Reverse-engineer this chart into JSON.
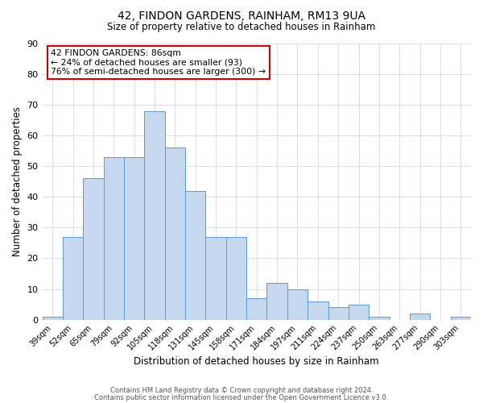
{
  "title": "42, FINDON GARDENS, RAINHAM, RM13 9UA",
  "subtitle": "Size of property relative to detached houses in Rainham",
  "xlabel": "Distribution of detached houses by size in Rainham",
  "ylabel": "Number of detached properties",
  "categories": [
    "39sqm",
    "52sqm",
    "65sqm",
    "79sqm",
    "92sqm",
    "105sqm",
    "118sqm",
    "131sqm",
    "145sqm",
    "158sqm",
    "171sqm",
    "184sqm",
    "197sqm",
    "211sqm",
    "224sqm",
    "237sqm",
    "250sqm",
    "263sqm",
    "277sqm",
    "290sqm",
    "303sqm"
  ],
  "values": [
    1,
    27,
    46,
    53,
    53,
    68,
    56,
    42,
    27,
    27,
    7,
    12,
    10,
    6,
    4,
    5,
    1,
    0,
    2,
    0,
    1
  ],
  "bar_color": "#c5d8ed",
  "bar_edge_color": "#5b9bd5",
  "grid_color": "#d0d8e8",
  "background_color": "#ffffff",
  "annotation_box_text": "42 FINDON GARDENS: 86sqm\n← 24% of detached houses are smaller (93)\n76% of semi-detached houses are larger (300) →",
  "annotation_box_color": "#ffffff",
  "annotation_box_edge_color": "#cc0000",
  "ylim": [
    0,
    90
  ],
  "yticks": [
    0,
    10,
    20,
    30,
    40,
    50,
    60,
    70,
    80,
    90
  ],
  "footer_line1": "Contains HM Land Registry data © Crown copyright and database right 2024.",
  "footer_line2": "Contains public sector information licensed under the Open Government Licence v3.0."
}
